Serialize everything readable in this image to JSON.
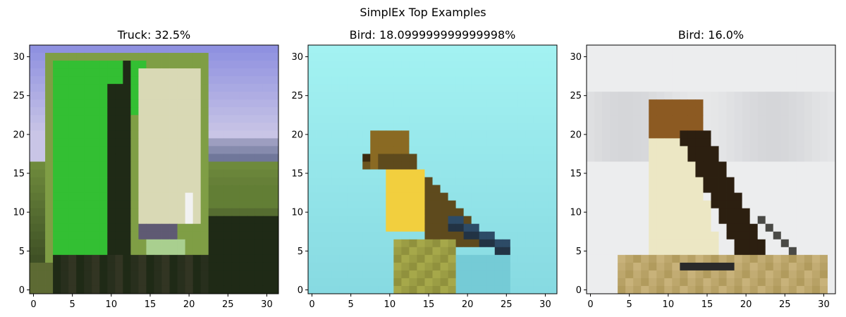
{
  "figure": {
    "suptitle": "SimplEx Top Examples"
  },
  "chart_data": [
    {
      "type": "image",
      "title": "Truck: 32.5%",
      "xlim": [
        -0.5,
        31.5
      ],
      "ylim": [
        31.5,
        -0.5
      ],
      "xticks": [
        0,
        5,
        10,
        15,
        20,
        25,
        30
      ],
      "yticks": [
        0,
        5,
        10,
        15,
        20,
        25,
        30
      ],
      "grid": false,
      "colors": {
        "sky": "#8f91e0",
        "sky_low": "#c9c5e6",
        "green": "#33bf33",
        "dark": "#1f2a16",
        "panel": "#d9d9b5",
        "grass": "#6e8a3c",
        "mountain": "#5a6487",
        "frame": "#7f9e45"
      }
    },
    {
      "type": "image",
      "title": "Bird: 18.099999999999998%",
      "xlim": [
        -0.5,
        31.5
      ],
      "ylim": [
        31.5,
        -0.5
      ],
      "xticks": [
        0,
        5,
        10,
        15,
        20,
        25,
        30
      ],
      "yticks": [
        0,
        5,
        10,
        15,
        20,
        25,
        30
      ],
      "grid": false,
      "colors": {
        "bg": "#a3f2f2",
        "bg_low": "#7fd3dd",
        "bird_head": "#8a6a23",
        "bird_breast": "#f2cf3e",
        "bird_wing": "#5e4a1d",
        "tail": "#2d4b66",
        "perch": "#a6a84a"
      }
    },
    {
      "type": "image",
      "title": "Bird: 16.0%",
      "xlim": [
        -0.5,
        31.5
      ],
      "ylim": [
        31.5,
        -0.5
      ],
      "xticks": [
        0,
        5,
        10,
        15,
        20,
        25,
        30
      ],
      "yticks": [
        0,
        5,
        10,
        15,
        20,
        25,
        30
      ],
      "grid": false,
      "colors": {
        "bg": "#ecedee",
        "bg_gray": "#cfd0d4",
        "bird_head": "#8c5a22",
        "bird_body": "#ece7c4",
        "bird_wing": "#2c1f10",
        "tail": "#4a4a46",
        "ground": "#c8b27a"
      }
    }
  ]
}
